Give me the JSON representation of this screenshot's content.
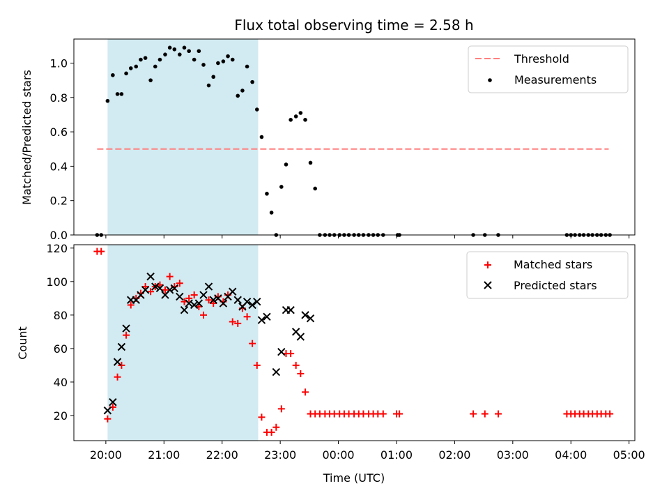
{
  "chart_data": [
    {
      "type": "scatter",
      "title": "Flux total observing time = 2.58 h",
      "ylabel": "Matched/Predicted stars",
      "xlabel": "",
      "x_unit": "hours since 20:00 UTC",
      "xlim": [
        -0.55,
        9.1
      ],
      "ylim": [
        0.0,
        1.14
      ],
      "y_ticks": [
        "0.0",
        "0.2",
        "0.4",
        "0.6",
        "0.8",
        "1.0"
      ],
      "shaded_interval": [
        0.03,
        2.62
      ],
      "shade_color": "#add8e6",
      "threshold": {
        "name": "Threshold",
        "value": 0.5,
        "x": [
          -0.15,
          8.65
        ],
        "color": "#ff7f7f",
        "style": "dashed"
      },
      "series": [
        {
          "name": "Measurements",
          "color": "#000000",
          "marker": "dot",
          "points": [
            [
              -0.15,
              0.0
            ],
            [
              -0.08,
              0.0
            ],
            [
              0.03,
              0.78
            ],
            [
              0.12,
              0.93
            ],
            [
              0.2,
              0.82
            ],
            [
              0.27,
              0.82
            ],
            [
              0.35,
              0.94
            ],
            [
              0.43,
              0.97
            ],
            [
              0.52,
              0.98
            ],
            [
              0.6,
              1.02
            ],
            [
              0.68,
              1.03
            ],
            [
              0.77,
              0.9
            ],
            [
              0.85,
              0.98
            ],
            [
              0.93,
              1.02
            ],
            [
              1.02,
              1.05
            ],
            [
              1.1,
              1.09
            ],
            [
              1.18,
              1.08
            ],
            [
              1.27,
              1.05
            ],
            [
              1.35,
              1.09
            ],
            [
              1.43,
              1.07
            ],
            [
              1.52,
              1.02
            ],
            [
              1.6,
              1.07
            ],
            [
              1.68,
              0.99
            ],
            [
              1.77,
              0.87
            ],
            [
              1.85,
              0.92
            ],
            [
              1.93,
              1.0
            ],
            [
              2.02,
              1.01
            ],
            [
              2.1,
              1.04
            ],
            [
              2.18,
              1.02
            ],
            [
              2.27,
              0.81
            ],
            [
              2.35,
              0.84
            ],
            [
              2.43,
              0.98
            ],
            [
              2.52,
              0.89
            ],
            [
              2.6,
              0.73
            ],
            [
              2.68,
              0.57
            ],
            [
              2.77,
              0.24
            ],
            [
              2.85,
              0.13
            ],
            [
              2.93,
              0.0
            ],
            [
              3.02,
              0.28
            ],
            [
              3.1,
              0.41
            ],
            [
              3.18,
              0.67
            ],
            [
              3.27,
              0.69
            ],
            [
              3.35,
              0.71
            ],
            [
              3.43,
              0.67
            ],
            [
              3.52,
              0.42
            ],
            [
              3.6,
              0.27
            ],
            [
              3.68,
              0.0
            ],
            [
              3.77,
              0.0
            ],
            [
              3.85,
              0.0
            ],
            [
              3.93,
              0.0
            ],
            [
              4.02,
              0.0
            ],
            [
              4.1,
              0.0
            ],
            [
              4.18,
              0.0
            ],
            [
              4.27,
              0.0
            ],
            [
              4.35,
              0.0
            ],
            [
              4.43,
              0.0
            ],
            [
              4.52,
              0.0
            ],
            [
              4.6,
              0.0
            ],
            [
              4.68,
              0.0
            ],
            [
              4.77,
              0.0
            ],
            [
              5.02,
              0.0
            ],
            [
              5.05,
              0.0
            ],
            [
              6.32,
              0.0
            ],
            [
              6.52,
              0.0
            ],
            [
              6.75,
              0.0
            ],
            [
              7.93,
              0.0
            ],
            [
              8.0,
              0.0
            ],
            [
              8.07,
              0.0
            ],
            [
              8.15,
              0.0
            ],
            [
              8.22,
              0.0
            ],
            [
              8.3,
              0.0
            ],
            [
              8.37,
              0.0
            ],
            [
              8.45,
              0.0
            ],
            [
              8.52,
              0.0
            ],
            [
              8.6,
              0.0
            ],
            [
              8.67,
              0.0
            ]
          ]
        }
      ],
      "legend": {
        "position": "upper right",
        "entries": [
          "Threshold",
          "Measurements"
        ]
      }
    },
    {
      "type": "scatter",
      "title": "",
      "ylabel": "Count",
      "xlabel": "Time (UTC)",
      "x_unit": "hours since 20:00 UTC",
      "xlim": [
        -0.55,
        9.1
      ],
      "ylim": [
        5,
        122
      ],
      "y_ticks": [
        "20",
        "40",
        "60",
        "80",
        "100",
        "120"
      ],
      "x_ticks": [
        "20:00",
        "21:00",
        "22:00",
        "23:00",
        "00:00",
        "01:00",
        "02:00",
        "03:00",
        "04:00",
        "05:00"
      ],
      "shaded_interval": [
        0.03,
        2.62
      ],
      "shade_color": "#add8e6",
      "series": [
        {
          "name": "Matched stars",
          "color": "#ff0000",
          "marker": "plus",
          "points": [
            [
              -0.15,
              118
            ],
            [
              -0.08,
              118
            ],
            [
              0.03,
              18
            ],
            [
              0.12,
              25
            ],
            [
              0.2,
              43
            ],
            [
              0.27,
              50
            ],
            [
              0.35,
              68
            ],
            [
              0.43,
              86
            ],
            [
              0.52,
              90
            ],
            [
              0.6,
              93
            ],
            [
              0.68,
              97
            ],
            [
              0.77,
              94
            ],
            [
              0.85,
              97
            ],
            [
              0.93,
              98
            ],
            [
              1.02,
              95
            ],
            [
              1.1,
              103
            ],
            [
              1.18,
              97
            ],
            [
              1.27,
              99
            ],
            [
              1.35,
              88
            ],
            [
              1.43,
              90
            ],
            [
              1.52,
              92
            ],
            [
              1.6,
              85
            ],
            [
              1.68,
              80
            ],
            [
              1.77,
              89
            ],
            [
              1.85,
              87
            ],
            [
              1.93,
              91
            ],
            [
              2.02,
              88
            ],
            [
              2.1,
              92
            ],
            [
              2.18,
              76
            ],
            [
              2.27,
              75
            ],
            [
              2.35,
              84
            ],
            [
              2.43,
              79
            ],
            [
              2.52,
              63
            ],
            [
              2.6,
              50
            ],
            [
              2.68,
              19
            ],
            [
              2.77,
              10
            ],
            [
              2.85,
              10
            ],
            [
              2.93,
              13
            ],
            [
              3.02,
              24
            ],
            [
              3.1,
              57
            ],
            [
              3.18,
              57
            ],
            [
              3.27,
              50
            ],
            [
              3.35,
              45
            ],
            [
              3.43,
              34
            ],
            [
              3.52,
              21
            ],
            [
              3.6,
              21
            ],
            [
              3.68,
              21
            ],
            [
              3.77,
              21
            ],
            [
              3.85,
              21
            ],
            [
              3.93,
              21
            ],
            [
              4.02,
              21
            ],
            [
              4.1,
              21
            ],
            [
              4.18,
              21
            ],
            [
              4.27,
              21
            ],
            [
              4.35,
              21
            ],
            [
              4.43,
              21
            ],
            [
              4.52,
              21
            ],
            [
              4.6,
              21
            ],
            [
              4.68,
              21
            ],
            [
              4.77,
              21
            ],
            [
              5.0,
              21
            ],
            [
              5.05,
              21
            ],
            [
              6.32,
              21
            ],
            [
              6.52,
              21
            ],
            [
              6.75,
              21
            ],
            [
              7.93,
              21
            ],
            [
              8.0,
              21
            ],
            [
              8.07,
              21
            ],
            [
              8.15,
              21
            ],
            [
              8.22,
              21
            ],
            [
              8.3,
              21
            ],
            [
              8.37,
              21
            ],
            [
              8.45,
              21
            ],
            [
              8.52,
              21
            ],
            [
              8.6,
              21
            ],
            [
              8.67,
              21
            ]
          ]
        },
        {
          "name": "Predicted stars",
          "color": "#000000",
          "marker": "x",
          "points": [
            [
              0.03,
              23
            ],
            [
              0.12,
              28
            ],
            [
              0.2,
              52
            ],
            [
              0.27,
              61
            ],
            [
              0.35,
              72
            ],
            [
              0.43,
              89
            ],
            [
              0.52,
              89
            ],
            [
              0.6,
              92
            ],
            [
              0.68,
              95
            ],
            [
              0.77,
              103
            ],
            [
              0.85,
              97
            ],
            [
              0.93,
              96
            ],
            [
              1.02,
              92
            ],
            [
              1.1,
              95
            ],
            [
              1.18,
              96
            ],
            [
              1.27,
              91
            ],
            [
              1.35,
              83
            ],
            [
              1.43,
              87
            ],
            [
              1.52,
              86
            ],
            [
              1.6,
              87
            ],
            [
              1.68,
              92
            ],
            [
              1.77,
              97
            ],
            [
              1.85,
              89
            ],
            [
              1.93,
              90
            ],
            [
              2.02,
              87
            ],
            [
              2.1,
              91
            ],
            [
              2.18,
              94
            ],
            [
              2.27,
              89
            ],
            [
              2.35,
              85
            ],
            [
              2.43,
              88
            ],
            [
              2.52,
              86
            ],
            [
              2.6,
              88
            ],
            [
              2.68,
              77
            ],
            [
              2.77,
              79
            ],
            [
              2.93,
              46
            ],
            [
              3.02,
              58
            ],
            [
              3.1,
              83
            ],
            [
              3.18,
              83
            ],
            [
              3.27,
              70
            ],
            [
              3.35,
              67
            ],
            [
              3.43,
              80
            ],
            [
              3.52,
              78
            ]
          ]
        }
      ],
      "legend": {
        "position": "upper right",
        "entries": [
          "Matched stars",
          "Predicted stars"
        ]
      }
    }
  ]
}
